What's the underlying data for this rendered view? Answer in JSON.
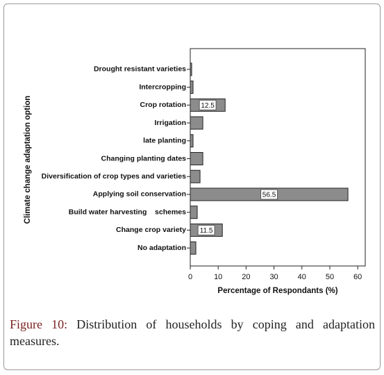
{
  "chart_data": {
    "type": "barh",
    "categories": [
      "Drought resistant varieties",
      "Intercropping",
      "Crop rotation",
      "Irrigation",
      "late planting",
      "Changing planting dates",
      "Diversification of crop types and varieties",
      "Applying soil conservation",
      "Build water harvesting    schemes",
      "Change crop variety",
      "No adaptation"
    ],
    "values": [
      0.5,
      1,
      12.5,
      4.5,
      1,
      4.5,
      3.5,
      56.5,
      2.5,
      11.5,
      2
    ],
    "value_labels": [
      null,
      null,
      "12.5",
      null,
      null,
      null,
      null,
      "56.5",
      null,
      "11.5",
      null
    ],
    "color": "#8c8c8c",
    "xlabel": "Percentage of Respondants (%)",
    "ylabel": "Climate change adaptation option",
    "xlim": [
      0,
      62.7
    ],
    "xticks": [
      0,
      10,
      20,
      30,
      40,
      50,
      60
    ]
  },
  "caption": {
    "label": "Figure 10:",
    "text": "Distribution of households by coping and adaptation measures."
  }
}
